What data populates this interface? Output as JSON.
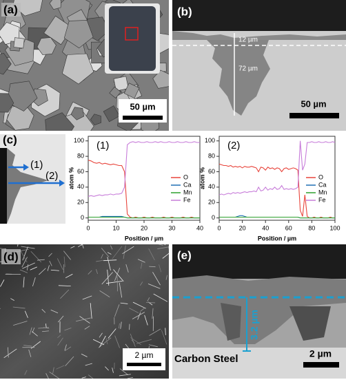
{
  "panels": {
    "a": {
      "label": "(a)",
      "scale_bar": "50 µm"
    },
    "b": {
      "label": "(b)",
      "scale_bar": "50 µm",
      "annotations": [
        "12 µm",
        "72 µm"
      ]
    },
    "c": {
      "label": "(c)",
      "arrow_labels": [
        "(1)",
        "(2)"
      ]
    },
    "d": {
      "label": "(d)",
      "scale_bar": "2 µm"
    },
    "e": {
      "label": "(e)",
      "scale_bar": "2 µm",
      "thickness": "3.2 µm",
      "material": "Carbon Steel"
    }
  },
  "chart_data": [
    {
      "type": "line",
      "title": "(1)",
      "x_label": "Position / µm",
      "y_label": "atom %",
      "x": [
        0,
        1,
        2,
        3,
        4,
        5,
        6,
        7,
        8,
        9,
        10,
        11,
        12,
        13,
        14,
        15,
        16,
        17,
        18,
        19,
        20,
        21,
        22,
        23,
        24,
        25,
        26,
        27,
        28,
        29,
        30,
        31,
        32,
        33,
        34,
        35,
        36,
        37,
        38,
        39,
        40
      ],
      "xlim": [
        0,
        40
      ],
      "xticks": [
        0,
        10,
        20,
        30,
        40
      ],
      "ylim": [
        -3,
        106
      ],
      "yticks": [
        0,
        20,
        40,
        60,
        80,
        100
      ],
      "series": [
        {
          "name": "O",
          "color": "#e8433a",
          "values": [
            75,
            74,
            72,
            71,
            72,
            70,
            71,
            70,
            69,
            70,
            69,
            68,
            68,
            60,
            5,
            1,
            0,
            1,
            0,
            0,
            1,
            0,
            0,
            1,
            0,
            0,
            0,
            1,
            0,
            0,
            1,
            0,
            0,
            0,
            1,
            0,
            0,
            1,
            0,
            0,
            0
          ]
        },
        {
          "name": "Ca",
          "color": "#1f6fb4",
          "values": [
            1,
            1,
            1,
            1,
            1,
            2,
            2,
            2,
            2,
            2,
            2,
            2,
            2,
            1,
            0,
            0,
            0,
            0,
            0,
            0,
            0,
            0,
            0,
            0,
            0,
            0,
            0,
            0,
            0,
            0,
            0,
            0,
            0,
            0,
            0,
            0,
            0,
            0,
            0,
            0,
            0
          ]
        },
        {
          "name": "Mn",
          "color": "#2ca02c",
          "values": [
            1,
            1,
            1,
            1,
            1,
            1,
            1,
            1,
            1,
            1,
            1,
            1,
            1,
            1,
            0,
            0,
            0,
            0,
            0,
            0,
            0,
            0,
            0,
            0,
            0,
            0,
            0,
            0,
            0,
            0,
            0,
            0,
            0,
            0,
            0,
            0,
            0,
            0,
            0,
            0,
            0
          ]
        },
        {
          "name": "Fe",
          "color": "#c77cd9",
          "values": [
            28,
            29,
            28,
            29,
            30,
            29,
            30,
            30,
            31,
            30,
            31,
            31,
            32,
            40,
            95,
            98,
            99,
            98,
            99,
            98,
            98,
            99,
            98,
            98,
            99,
            98,
            99,
            98,
            98,
            99,
            98,
            98,
            99,
            98,
            98,
            99,
            98,
            98,
            99,
            98,
            98
          ]
        }
      ]
    },
    {
      "type": "line",
      "title": "(2)",
      "x_label": "Position / µm",
      "y_label": "atom %",
      "x": [
        0,
        2,
        4,
        6,
        8,
        10,
        12,
        14,
        16,
        18,
        20,
        22,
        24,
        26,
        28,
        30,
        32,
        34,
        36,
        38,
        40,
        42,
        44,
        46,
        48,
        50,
        52,
        54,
        56,
        58,
        60,
        62,
        64,
        66,
        68,
        70,
        72,
        74,
        76,
        78,
        80,
        82,
        84,
        86,
        88,
        90,
        92,
        94,
        96,
        98,
        100
      ],
      "xlim": [
        0,
        100
      ],
      "xticks": [
        0,
        20,
        40,
        60,
        80,
        100
      ],
      "ylim": [
        -3,
        106
      ],
      "yticks": [
        0,
        20,
        40,
        60,
        80,
        100
      ],
      "series": [
        {
          "name": "O",
          "color": "#e8433a",
          "values": [
            70,
            69,
            68,
            68,
            67,
            68,
            66,
            67,
            66,
            67,
            65,
            67,
            66,
            66,
            67,
            66,
            65,
            60,
            66,
            65,
            62,
            66,
            64,
            65,
            63,
            65,
            64,
            60,
            64,
            65,
            63,
            64,
            65,
            64,
            62,
            10,
            2,
            30,
            2,
            0,
            0,
            1,
            0,
            0,
            1,
            0,
            0,
            0,
            1,
            0,
            0
          ]
        },
        {
          "name": "Ca",
          "color": "#1f6fb4",
          "values": [
            1,
            1,
            1,
            1,
            1,
            1,
            1,
            1,
            2,
            3,
            3,
            2,
            1,
            1,
            1,
            1,
            1,
            1,
            1,
            1,
            1,
            1,
            1,
            1,
            1,
            1,
            1,
            1,
            1,
            1,
            1,
            1,
            1,
            1,
            1,
            0,
            0,
            0,
            0,
            0,
            0,
            0,
            0,
            0,
            0,
            0,
            0,
            0,
            0,
            0,
            0
          ]
        },
        {
          "name": "Mn",
          "color": "#2ca02c",
          "values": [
            1,
            1,
            1,
            1,
            1,
            1,
            1,
            1,
            1,
            1,
            1,
            1,
            1,
            1,
            1,
            1,
            1,
            1,
            1,
            1,
            1,
            1,
            1,
            1,
            1,
            1,
            1,
            1,
            1,
            1,
            1,
            1,
            1,
            1,
            1,
            0,
            0,
            0,
            0,
            0,
            0,
            0,
            0,
            0,
            0,
            0,
            0,
            0,
            0,
            0,
            0
          ]
        },
        {
          "name": "Fe",
          "color": "#c77cd9",
          "values": [
            30,
            31,
            30,
            31,
            32,
            31,
            33,
            32,
            33,
            32,
            33,
            34,
            33,
            34,
            34,
            35,
            34,
            40,
            35,
            36,
            40,
            36,
            38,
            37,
            40,
            37,
            38,
            42,
            37,
            38,
            37,
            38,
            37,
            38,
            40,
            100,
            62,
            70,
            98,
            98,
            99,
            98,
            98,
            99,
            98,
            98,
            99,
            98,
            98,
            99,
            98
          ]
        }
      ]
    }
  ]
}
